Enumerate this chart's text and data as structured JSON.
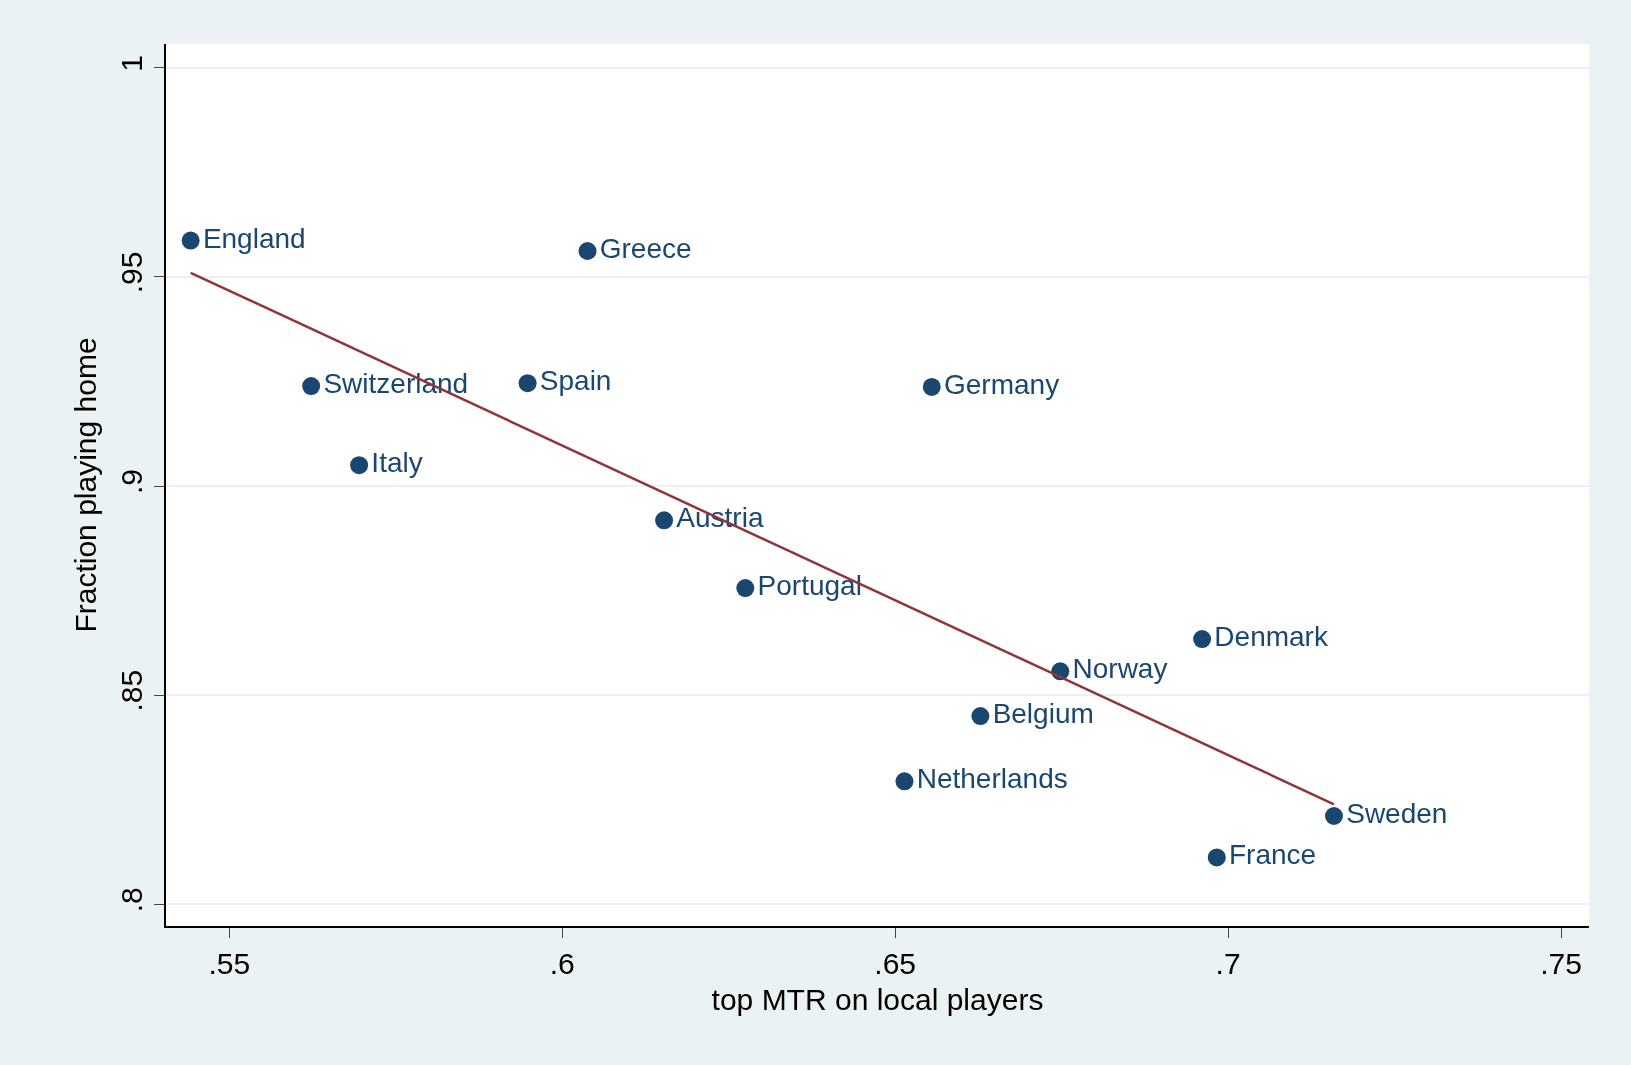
{
  "chart_data": {
    "type": "scatter",
    "xlabel": "top MTR on local players",
    "ylabel": "Fraction playing home",
    "xlim": [
      0.5405,
      0.7542
    ],
    "ylim": [
      0.7948,
      1.0057
    ],
    "xticks": [
      {
        "value": 0.55,
        "label": ".55"
      },
      {
        "value": 0.6,
        "label": ".6"
      },
      {
        "value": 0.65,
        "label": ".65"
      },
      {
        "value": 0.7,
        "label": ".7"
      },
      {
        "value": 0.75,
        "label": ".75"
      }
    ],
    "yticks": [
      {
        "value": 0.8,
        "label": ".8"
      },
      {
        "value": 0.85,
        "label": ".85"
      },
      {
        "value": 0.9,
        "label": ".9"
      },
      {
        "value": 0.95,
        "label": ".95"
      },
      1
    ],
    "grid": "y",
    "legend": false,
    "series": [
      {
        "marker": "circle",
        "color": "#1a476f",
        "x": [
          0.5442,
          0.6038,
          0.5623,
          0.5948,
          0.6555,
          0.5695,
          0.6153,
          0.6275,
          0.6961,
          0.6748,
          0.6628,
          0.6514,
          0.7159,
          0.6983
        ],
        "values": [
          0.9587,
          0.9562,
          0.9239,
          0.9246,
          0.9237,
          0.905,
          0.8918,
          0.8756,
          0.8634,
          0.8557,
          0.845,
          0.8294,
          0.8211,
          0.8112
        ],
        "value_labels": [
          "England",
          "Greece",
          "Switzerland",
          "Spain",
          "Germany",
          "Italy",
          "Austria",
          "Portugal",
          "Denmark",
          "Norway",
          "Belgium",
          "Netherlands",
          "Sweden",
          "France"
        ]
      },
      {
        "type": "line",
        "marker": "none",
        "color": "#90353b",
        "x": [
          0.5442,
          0.7159
        ],
        "values": [
          0.951,
          0.8239
        ]
      }
    ]
  }
}
